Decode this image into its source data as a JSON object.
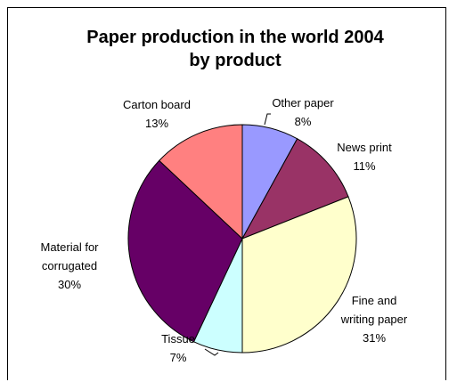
{
  "chart_data": {
    "type": "pie",
    "title": "Paper production in the world 2004 by product",
    "title_lines": [
      "Paper production in the world 2004",
      "by product"
    ],
    "slices": [
      {
        "label_lines": [
          "Other paper"
        ],
        "value": 8,
        "value_label": "8%",
        "color": "#9999ff"
      },
      {
        "label_lines": [
          "News print"
        ],
        "value": 11,
        "value_label": "11%",
        "color": "#993366"
      },
      {
        "label_lines": [
          "Fine and",
          "writing paper"
        ],
        "value": 31,
        "value_label": "31%",
        "color": "#ffffcc"
      },
      {
        "label_lines": [
          "Tissue"
        ],
        "value": 7,
        "value_label": "7%",
        "color": "#ccffff"
      },
      {
        "label_lines": [
          "Material for",
          "corrugated"
        ],
        "value": 30,
        "value_label": "30%",
        "color": "#660066"
      },
      {
        "label_lines": [
          "Carton board"
        ],
        "value": 13,
        "value_label": "13%",
        "color": "#ff8080"
      }
    ]
  }
}
